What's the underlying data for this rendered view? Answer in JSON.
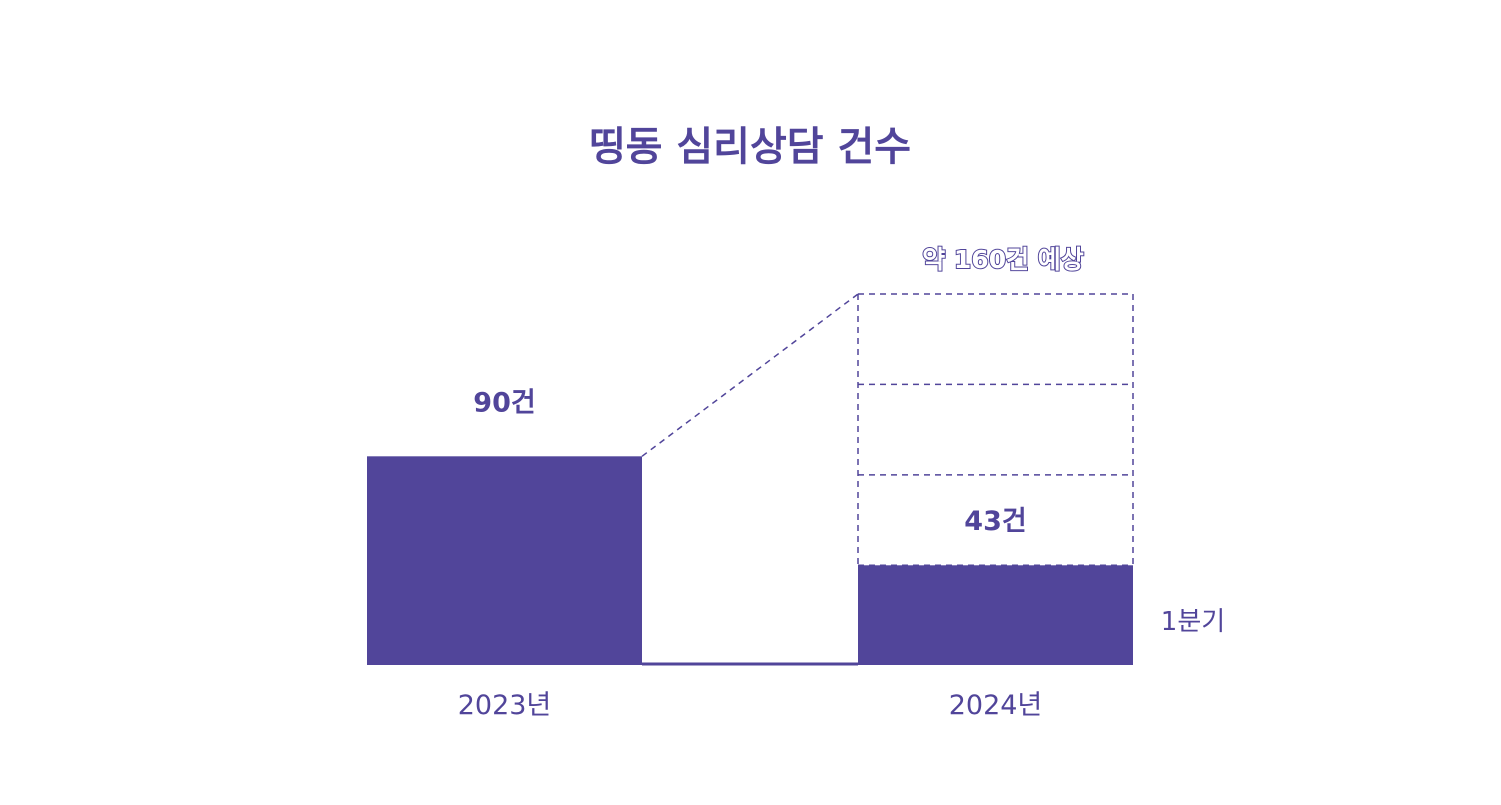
{
  "chart_data": {
    "type": "bar",
    "title": "띵동 심리상담 건수",
    "categories": [
      "2023년",
      "2024년"
    ],
    "values": [
      90,
      43
    ],
    "value_labels": [
      "90건",
      "43건"
    ],
    "projection": {
      "category": "2024년",
      "value": 160,
      "label": "약 160건 예상",
      "segments": 4
    },
    "actual_segment_label": "1분기",
    "ylim": [
      0,
      180
    ],
    "grid": false,
    "legend": "none",
    "colors": {
      "bar": "#51459A",
      "text": "#51459A",
      "dashed": "#51459A",
      "background": "#FFFFFF"
    }
  }
}
